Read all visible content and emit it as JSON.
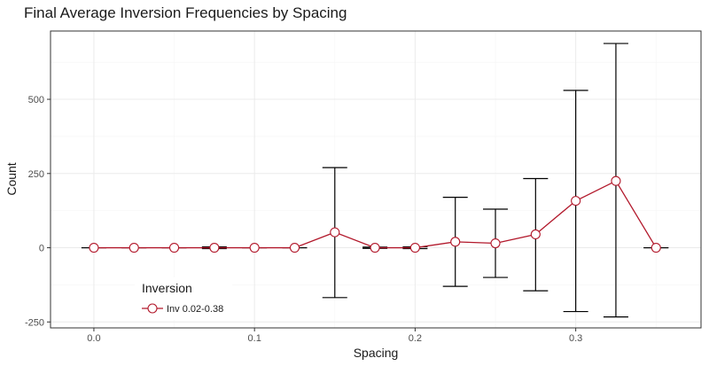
{
  "chart_data": {
    "type": "line",
    "title": "Final Average Inversion Frequencies by Spacing",
    "xlabel": "Spacing",
    "ylabel": "Count",
    "xlim": [
      -0.027,
      0.378
    ],
    "ylim": [
      -270,
      730
    ],
    "x_ticks": [
      0.0,
      0.1,
      0.2,
      0.3
    ],
    "x_tick_labels": [
      "0.0",
      "0.1",
      "0.2",
      "0.3"
    ],
    "y_ticks": [
      -250,
      0,
      250,
      500
    ],
    "y_tick_labels": [
      "-250",
      "0",
      "250",
      "500"
    ],
    "grid": true,
    "colors": {
      "series": "#b2182b",
      "errorbar": "#000000",
      "grid_major": "#ebebeb",
      "grid_minor": "#f5f5f5",
      "border": "#333333"
    },
    "legend": {
      "title": "Inversion",
      "position": "bottom-left",
      "entries": [
        "Inv 0.02-0.38"
      ]
    },
    "series": [
      {
        "name": "Inv 0.02-0.38",
        "x": [
          0.0,
          0.025,
          0.05,
          0.075,
          0.1,
          0.125,
          0.15,
          0.175,
          0.2,
          0.225,
          0.25,
          0.275,
          0.3,
          0.325,
          0.35
        ],
        "y": [
          0,
          0,
          0,
          0,
          0,
          0,
          52,
          0,
          0,
          20,
          15,
          45,
          158,
          225,
          0
        ],
        "y_low": [
          0,
          0,
          0,
          -3,
          0,
          0,
          -168,
          -2,
          -3,
          -130,
          -100,
          -145,
          -215,
          -233,
          0
        ],
        "y_high": [
          0,
          0,
          0,
          3,
          0,
          0,
          270,
          2,
          3,
          170,
          130,
          233,
          530,
          688,
          0
        ]
      }
    ]
  }
}
